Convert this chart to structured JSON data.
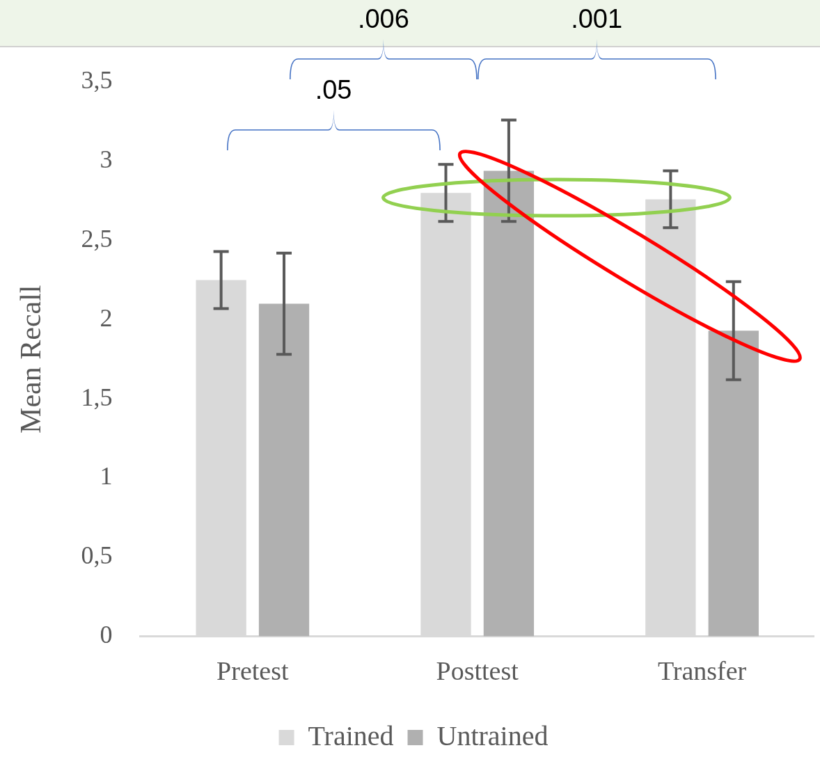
{
  "chart_data": {
    "type": "bar",
    "categories": [
      "Pretest",
      "Posttest",
      "Transfer"
    ],
    "ylabel": "Mean Recall",
    "series": [
      {
        "name": "Trained",
        "color": "#d9d9d9",
        "values": [
          2.25,
          2.8,
          2.76
        ],
        "errors": [
          0.18,
          0.18,
          0.18
        ]
      },
      {
        "name": "Untrained",
        "color": "#b0b0b0",
        "values": [
          2.1,
          2.94,
          1.93
        ],
        "errors": [
          0.32,
          0.32,
          0.31
        ]
      }
    ],
    "ylim": [
      0,
      3.5
    ],
    "yticks": [
      0,
      {
        "value": 0.5,
        "label": "0,5"
      },
      1,
      {
        "value": 1.5,
        "label": "1,5"
      },
      2,
      {
        "value": 2.5,
        "label": "2,5"
      },
      3,
      {
        "value": 3.5,
        "label": "3,5"
      }
    ],
    "grid": false,
    "legend": "bottom",
    "annotations": [
      ".05",
      ".006",
      ".001"
    ]
  }
}
